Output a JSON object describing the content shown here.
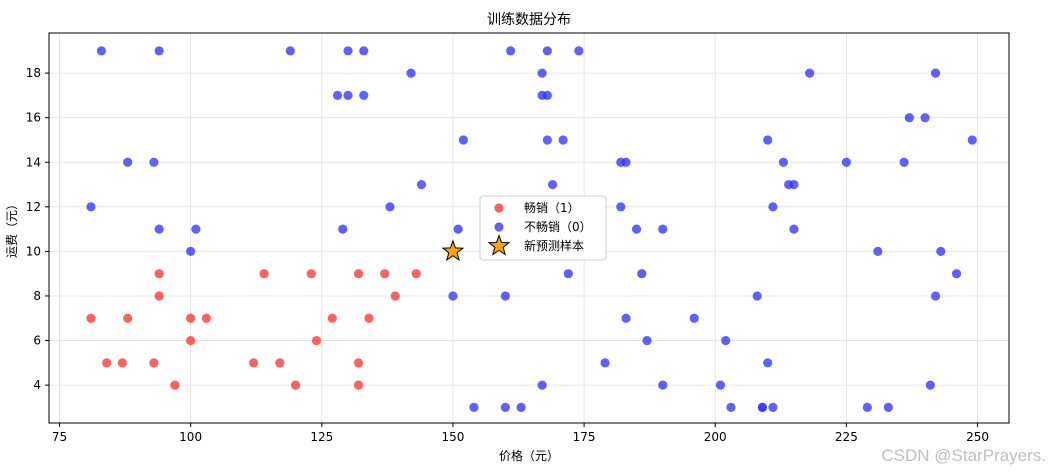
{
  "chart_data": {
    "type": "scatter",
    "title": "训练数据分布",
    "xlabel": "价格（元）",
    "ylabel": "运费（元）",
    "xlim": [
      73,
      256
    ],
    "ylim": [
      2.3,
      19.8
    ],
    "xticks": [
      75,
      100,
      125,
      150,
      175,
      200,
      225,
      250
    ],
    "yticks": [
      4,
      6,
      8,
      10,
      12,
      14,
      16,
      18
    ],
    "grid": true,
    "legend_position": "center",
    "series": [
      {
        "name": "畅销（1）",
        "color": "#ff3333",
        "marker": "circle",
        "points": [
          [
            81,
            7
          ],
          [
            84,
            5
          ],
          [
            87,
            5
          ],
          [
            88,
            7
          ],
          [
            93,
            5
          ],
          [
            94,
            8
          ],
          [
            94,
            9
          ],
          [
            97,
            4
          ],
          [
            100,
            6
          ],
          [
            100,
            7
          ],
          [
            103,
            7
          ],
          [
            112,
            5
          ],
          [
            114,
            9
          ],
          [
            117,
            5
          ],
          [
            120,
            4
          ],
          [
            123,
            9
          ],
          [
            124,
            6
          ],
          [
            127,
            7
          ],
          [
            132,
            4
          ],
          [
            132,
            5
          ],
          [
            132,
            9
          ],
          [
            134,
            7
          ],
          [
            137,
            9
          ],
          [
            139,
            8
          ],
          [
            143,
            9
          ]
        ]
      },
      {
        "name": "不畅销（0）",
        "color": "#3333ff",
        "marker": "circle",
        "points": [
          [
            83,
            19
          ],
          [
            94,
            19
          ],
          [
            119,
            19
          ],
          [
            130,
            19
          ],
          [
            133,
            19
          ],
          [
            161,
            19
          ],
          [
            168,
            19
          ],
          [
            174,
            19
          ],
          [
            142,
            18
          ],
          [
            167,
            18
          ],
          [
            218,
            18
          ],
          [
            242,
            18
          ],
          [
            128,
            17
          ],
          [
            130,
            17
          ],
          [
            133,
            17
          ],
          [
            167,
            17
          ],
          [
            168,
            17
          ],
          [
            237,
            16
          ],
          [
            240,
            16
          ],
          [
            152,
            15
          ],
          [
            168,
            15
          ],
          [
            171,
            15
          ],
          [
            210,
            15
          ],
          [
            249,
            15
          ],
          [
            88,
            14
          ],
          [
            93,
            14
          ],
          [
            182,
            14
          ],
          [
            183,
            14
          ],
          [
            213,
            14
          ],
          [
            225,
            14
          ],
          [
            236,
            14
          ],
          [
            144,
            13
          ],
          [
            169,
            13
          ],
          [
            214,
            13
          ],
          [
            215,
            13
          ],
          [
            81,
            12
          ],
          [
            138,
            12
          ],
          [
            182,
            12
          ],
          [
            211,
            12
          ],
          [
            94,
            11
          ],
          [
            101,
            11
          ],
          [
            129,
            11
          ],
          [
            151,
            11
          ],
          [
            185,
            11
          ],
          [
            190,
            11
          ],
          [
            215,
            11
          ],
          [
            100,
            10
          ],
          [
            231,
            10
          ],
          [
            243,
            10
          ],
          [
            172,
            9
          ],
          [
            186,
            9
          ],
          [
            246,
            9
          ],
          [
            150,
            8
          ],
          [
            160,
            8
          ],
          [
            208,
            8
          ],
          [
            242,
            8
          ],
          [
            183,
            7
          ],
          [
            196,
            7
          ],
          [
            187,
            6
          ],
          [
            202,
            6
          ],
          [
            179,
            5
          ],
          [
            210,
            5
          ],
          [
            167,
            4
          ],
          [
            190,
            4
          ],
          [
            201,
            4
          ],
          [
            241,
            4
          ],
          [
            154,
            3
          ],
          [
            160,
            3
          ],
          [
            163,
            3
          ],
          [
            203,
            3
          ],
          [
            209,
            3
          ],
          [
            209,
            3
          ],
          [
            211,
            3
          ],
          [
            229,
            3
          ],
          [
            233,
            3
          ]
        ]
      },
      {
        "name": "新预测样本",
        "color": "#ffa500",
        "marker": "star",
        "points": [
          [
            150,
            10
          ]
        ]
      }
    ]
  },
  "watermark": "CSDN @StarPrayers."
}
